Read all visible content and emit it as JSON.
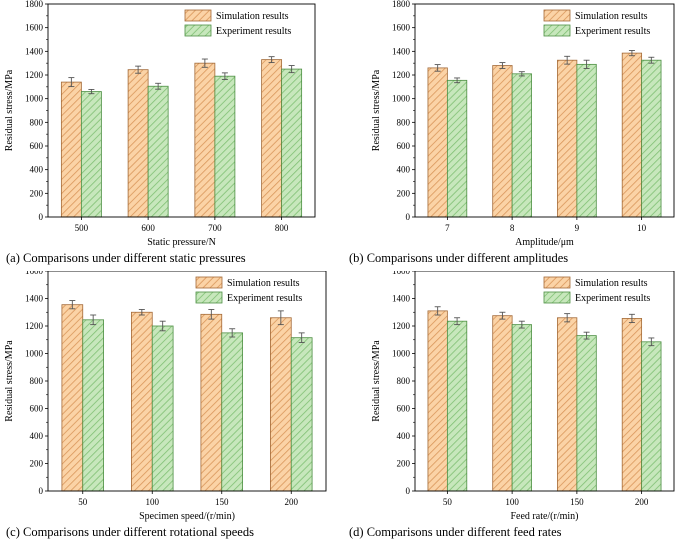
{
  "colors": {
    "sim_fill": "#fbd3a6",
    "sim_hatch": "#d9965a",
    "sim_stroke": "#a36a38",
    "exp_fill": "#c7e7bc",
    "exp_hatch": "#7fbf73",
    "exp_stroke": "#4d8f43",
    "error_bar": "#555555"
  },
  "chart_data": [
    {
      "type": "bar",
      "caption": "(a) Comparisons under different static pressures",
      "xlabel": "Static pressure/N",
      "ylabel": "Residual stress/MPa",
      "categories": [
        "500",
        "600",
        "700",
        "800"
      ],
      "ylim": [
        0,
        1800
      ],
      "yticks": [
        "0",
        "200",
        "400",
        "600",
        "800",
        "1000",
        "1200",
        "1400",
        "1600",
        "1800"
      ],
      "legend_position": "top-right",
      "series": [
        {
          "name": "Simulation results",
          "values": [
            1140,
            1245,
            1300,
            1330
          ],
          "errors": [
            38,
            30,
            35,
            25
          ]
        },
        {
          "name": "Experiment results",
          "values": [
            1060,
            1105,
            1190,
            1250
          ],
          "errors": [
            18,
            25,
            28,
            30
          ]
        }
      ]
    },
    {
      "type": "bar",
      "caption": "(b) Comparisons under different amplitudes",
      "xlabel": "Amplitude/μm",
      "ylabel": "Residual stress/MPa",
      "categories": [
        "7",
        "8",
        "9",
        "10"
      ],
      "ylim": [
        0,
        1800
      ],
      "yticks": [
        "0",
        "200",
        "400",
        "600",
        "800",
        "1000",
        "1200",
        "1400",
        "1600",
        "1800"
      ],
      "legend_position": "top-right",
      "series": [
        {
          "name": "Simulation results",
          "values": [
            1260,
            1280,
            1325,
            1385
          ],
          "errors": [
            28,
            25,
            33,
            22
          ]
        },
        {
          "name": "Experiment results",
          "values": [
            1155,
            1210,
            1290,
            1325
          ],
          "errors": [
            20,
            18,
            35,
            25
          ]
        }
      ]
    },
    {
      "type": "bar",
      "caption": "(c) Comparisons under different rotational speeds",
      "xlabel": "Specimen speed/(r/min)",
      "ylabel": "Residual stress/MPa",
      "categories": [
        "50",
        "100",
        "150",
        "200"
      ],
      "ylim": [
        0,
        1600
      ],
      "yticks": [
        "0",
        "200",
        "400",
        "600",
        "800",
        "1000",
        "1200",
        "1400",
        "1600"
      ],
      "legend_position": "top-right",
      "series": [
        {
          "name": "Simulation results",
          "values": [
            1355,
            1300,
            1285,
            1260
          ],
          "errors": [
            30,
            20,
            35,
            50
          ]
        },
        {
          "name": "Experiment results",
          "values": [
            1245,
            1200,
            1150,
            1115
          ],
          "errors": [
            35,
            35,
            30,
            35
          ]
        }
      ]
    },
    {
      "type": "bar",
      "caption": "(d) Comparisons under different feed rates",
      "xlabel": "Feed rate/(r/min)",
      "ylabel": "Residual stress/MPa",
      "categories": [
        "50",
        "100",
        "150",
        "200"
      ],
      "ylim": [
        0,
        1600
      ],
      "yticks": [
        "0",
        "200",
        "400",
        "600",
        "800",
        "1000",
        "1200",
        "1400",
        "1600"
      ],
      "legend_position": "top-right",
      "series": [
        {
          "name": "Simulation results",
          "values": [
            1310,
            1275,
            1260,
            1255
          ],
          "errors": [
            30,
            25,
            30,
            30
          ]
        },
        {
          "name": "Experiment results",
          "values": [
            1235,
            1210,
            1130,
            1085
          ],
          "errors": [
            25,
            25,
            25,
            28
          ]
        }
      ]
    }
  ]
}
